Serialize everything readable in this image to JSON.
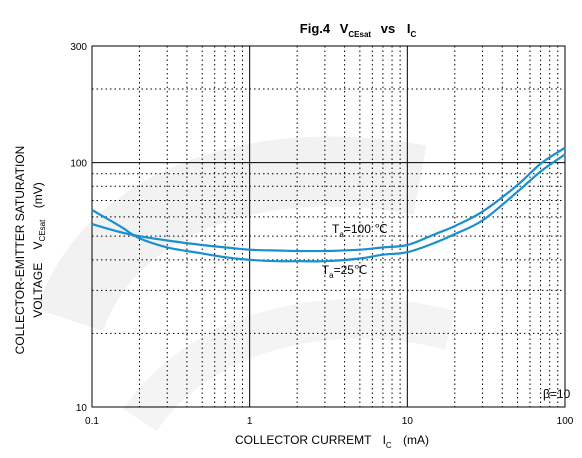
{
  "chart_data": {
    "type": "line",
    "title": {
      "main": "Fig.4",
      "v": "V",
      "v_sub": "CEsat",
      "vs": "vs",
      "i": "I",
      "i_sub": "C"
    },
    "xlabel": {
      "text": "COLLECTOR CURREMT",
      "symbol": "I",
      "symbol_sub": "C",
      "unit": "(mA)"
    },
    "ylabel": {
      "line1": "COLLECTOR-EMITTER SATURATION",
      "line2_text": "VOLTAGE",
      "line2_symbol": "V",
      "line2_sub": "CEsat",
      "line2_unit": "(mV)"
    },
    "x_scale": "log",
    "y_scale": "log",
    "xlim": [
      0.1,
      100
    ],
    "ylim": [
      10,
      300
    ],
    "x_ticks": [
      {
        "value": 0.1,
        "label": "0.1"
      },
      {
        "value": 1,
        "label": "1"
      },
      {
        "value": 10,
        "label": "10"
      },
      {
        "value": 100,
        "label": "100"
      }
    ],
    "y_ticks": [
      {
        "value": 10,
        "label": "10"
      },
      {
        "value": 100,
        "label": "100"
      },
      {
        "value": 300,
        "label": "300"
      }
    ],
    "grid": true,
    "series": [
      {
        "label_T": "T",
        "label_sub": "a",
        "label_rest": "=100 ℃",
        "label_at": {
          "x": 5,
          "y": 51.5
        },
        "x": [
          0.1,
          0.15,
          0.2,
          0.3,
          0.5,
          0.7,
          1,
          1.5,
          2,
          3,
          5,
          7,
          10,
          15,
          20,
          30,
          50,
          70,
          100
        ],
        "y": [
          56,
          52,
          50,
          48,
          46,
          45,
          44,
          43.7,
          43.5,
          43.5,
          44,
          45,
          46,
          51,
          55,
          63,
          81,
          99,
          115
        ]
      },
      {
        "label_T": "T",
        "label_sub": "a",
        "label_rest": "=25℃",
        "label_at": {
          "x": 4,
          "y": 35
        },
        "x": [
          0.1,
          0.15,
          0.2,
          0.3,
          0.5,
          0.7,
          1,
          1.5,
          2,
          3,
          5,
          7,
          10,
          15,
          20,
          30,
          50,
          70,
          100
        ],
        "y": [
          64,
          55,
          49,
          45,
          42.5,
          41,
          40,
          39.5,
          39.5,
          39.5,
          40.5,
          42,
          43,
          47,
          51,
          58,
          76,
          92,
          108
        ]
      }
    ],
    "beta_label": "β=10",
    "line_color": "#1a8fcf",
    "grid_color": "#000000"
  }
}
